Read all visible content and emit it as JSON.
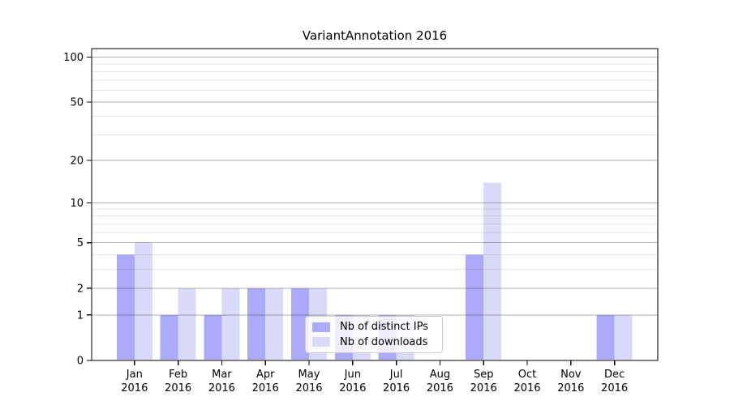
{
  "page": {
    "background": "#ffffff"
  },
  "chart_data": {
    "type": "bar",
    "title": "VariantAnnotation 2016",
    "categories": [
      "Jan",
      "Feb",
      "Mar",
      "Apr",
      "May",
      "Jun",
      "Jul",
      "Aug",
      "Sep",
      "Oct",
      "Nov",
      "Dec"
    ],
    "year_label": "2016",
    "series": [
      {
        "name": "Nb of distinct IPs",
        "color": "#AAAAF8",
        "values": [
          4,
          1,
          1,
          2,
          2,
          1,
          1,
          0,
          4,
          0,
          0,
          1
        ]
      },
      {
        "name": "Nb of downloads",
        "color": "#D9D9F8",
        "values": [
          5,
          2,
          2,
          2,
          2,
          1,
          1,
          0,
          14,
          0,
          0,
          1
        ]
      }
    ],
    "xlabel": "",
    "ylabel": "",
    "yscale": "log1p",
    "ylim": [
      0,
      114
    ],
    "yticks": [
      0,
      1,
      2,
      5,
      10,
      20,
      50,
      100
    ],
    "yticks_minor": [
      3,
      4,
      6,
      7,
      8,
      9,
      30,
      40,
      60,
      70,
      80,
      90
    ],
    "grid": true,
    "legend_position": "lower-center",
    "colors": {
      "axis": "#000000",
      "grid_major": "rgba(0,0,0,0.30)",
      "grid_minor": "rgba(0,0,0,0.10)",
      "tick_label": "#000000"
    }
  }
}
